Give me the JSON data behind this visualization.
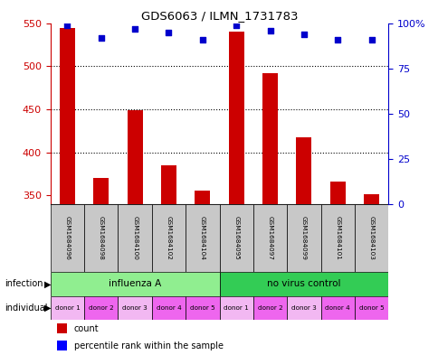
{
  "title": "GDS6063 / ILMN_1731783",
  "samples": [
    "GSM1684096",
    "GSM1684098",
    "GSM1684100",
    "GSM1684102",
    "GSM1684104",
    "GSM1684095",
    "GSM1684097",
    "GSM1684099",
    "GSM1684101",
    "GSM1684103"
  ],
  "counts": [
    544,
    370,
    449,
    385,
    356,
    540,
    492,
    417,
    366,
    352
  ],
  "percentile_ranks": [
    99,
    92,
    97,
    95,
    91,
    99,
    96,
    94,
    91,
    91
  ],
  "ylim_left": [
    340,
    550
  ],
  "ylim_right": [
    0,
    100
  ],
  "yticks_left": [
    350,
    400,
    450,
    500,
    550
  ],
  "yticks_right": [
    0,
    25,
    50,
    75,
    100
  ],
  "ytick_labels_right": [
    "0",
    "25",
    "50",
    "75",
    "100%"
  ],
  "infection_groups": [
    {
      "label": "influenza A",
      "start": 0,
      "end": 5,
      "color": "#90EE90"
    },
    {
      "label": "no virus control",
      "start": 5,
      "end": 10,
      "color": "#33CC55"
    }
  ],
  "individual_labels": [
    "donor 1",
    "donor 2",
    "donor 3",
    "donor 4",
    "donor 5",
    "donor 1",
    "donor 2",
    "donor 3",
    "donor 4",
    "donor 5"
  ],
  "individual_colors": [
    "#F2B8F2",
    "#EE66EE",
    "#F2B8F2",
    "#EE66EE",
    "#EE66EE",
    "#F2B8F2",
    "#EE66EE",
    "#F2B8F2",
    "#EE66EE",
    "#EE66EE"
  ],
  "bar_color": "#CC0000",
  "dot_color": "#0000CC",
  "grid_color": "#000000",
  "label_color_left": "#CC0000",
  "label_color_right": "#0000CC",
  "sample_bg_color": "#C8C8C8",
  "legend_count_color": "#CC0000",
  "legend_pct_color": "#0000FF",
  "bar_width": 0.45
}
